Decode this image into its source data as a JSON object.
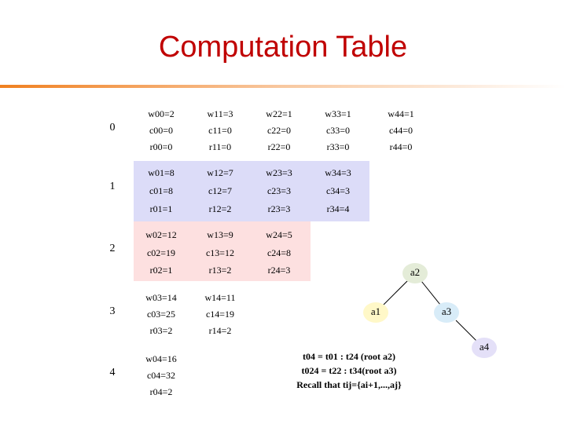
{
  "header": {
    "title": "Computation Table"
  },
  "table": {
    "rows": [
      {
        "label": "0",
        "cells": [
          [
            "w00=2",
            "c00=0",
            "r00=0"
          ],
          [
            "w11=3",
            "c11=0",
            "r11=0"
          ],
          [
            "w22=1",
            "c22=0",
            "r22=0"
          ],
          [
            "w33=1",
            "c33=0",
            "r33=0"
          ],
          [
            "w44=1",
            "c44=0",
            "r44=0"
          ]
        ]
      },
      {
        "label": "1",
        "cells": [
          [
            "w01=8",
            "c01=8",
            "r01=1"
          ],
          [
            "w12=7",
            "c12=7",
            "r12=2"
          ],
          [
            "w23=3",
            "c23=3",
            "r23=3"
          ],
          [
            "w34=3",
            "c34=3",
            "r34=4"
          ]
        ]
      },
      {
        "label": "2",
        "cells": [
          [
            "w02=12",
            "c02=19",
            "r02=1"
          ],
          [
            "w13=9",
            "c13=12",
            "r13=2"
          ],
          [
            "w24=5",
            "c24=8",
            "r24=3"
          ]
        ]
      },
      {
        "label": "3",
        "cells": [
          [
            "w03=14",
            "c03=25",
            "r03=2"
          ],
          [
            "w14=11",
            "c14=19",
            "r14=2"
          ]
        ]
      },
      {
        "label": "4",
        "cells": [
          [
            "w04=16",
            "c04=32",
            "r04=2"
          ]
        ]
      }
    ]
  },
  "tree": {
    "nodes": [
      {
        "label": "a2"
      },
      {
        "label": "a1"
      },
      {
        "label": "a3"
      },
      {
        "label": "a4"
      }
    ]
  },
  "note": {
    "lines": [
      "t04 = t01 : t24  (root a2)",
      "t024 = t22 : t34(root a3)",
      "Recall that tij={ai+1,...,aj}"
    ]
  }
}
